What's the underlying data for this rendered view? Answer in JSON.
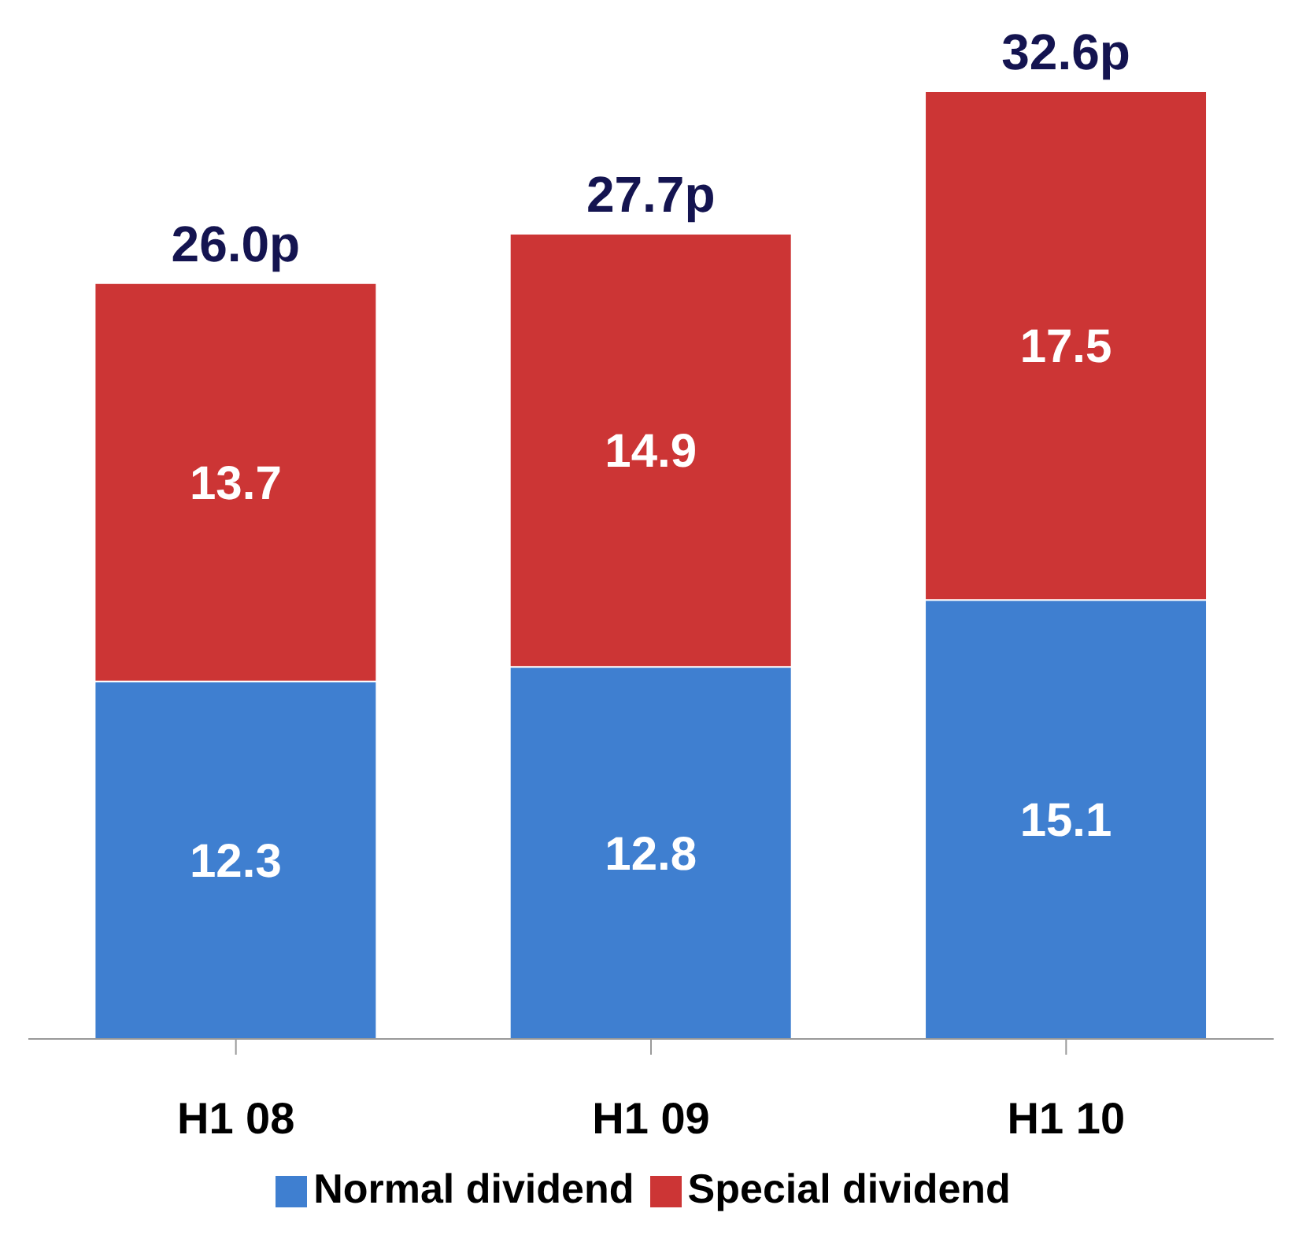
{
  "chart_data": {
    "type": "bar",
    "stacked": true,
    "categories": [
      "H1 08",
      "H1 09",
      "H1 10"
    ],
    "series": [
      {
        "name": "Normal dividend",
        "color": "#3f7fd0",
        "values": [
          12.3,
          12.8,
          15.1
        ]
      },
      {
        "name": "Special dividend",
        "color": "#cc3535",
        "values": [
          13.7,
          14.9,
          17.5
        ]
      }
    ],
    "data_labels": true,
    "totals": [
      "26.0p",
      "27.7p",
      "32.6p"
    ],
    "legend": "bottom",
    "grid": false
  }
}
